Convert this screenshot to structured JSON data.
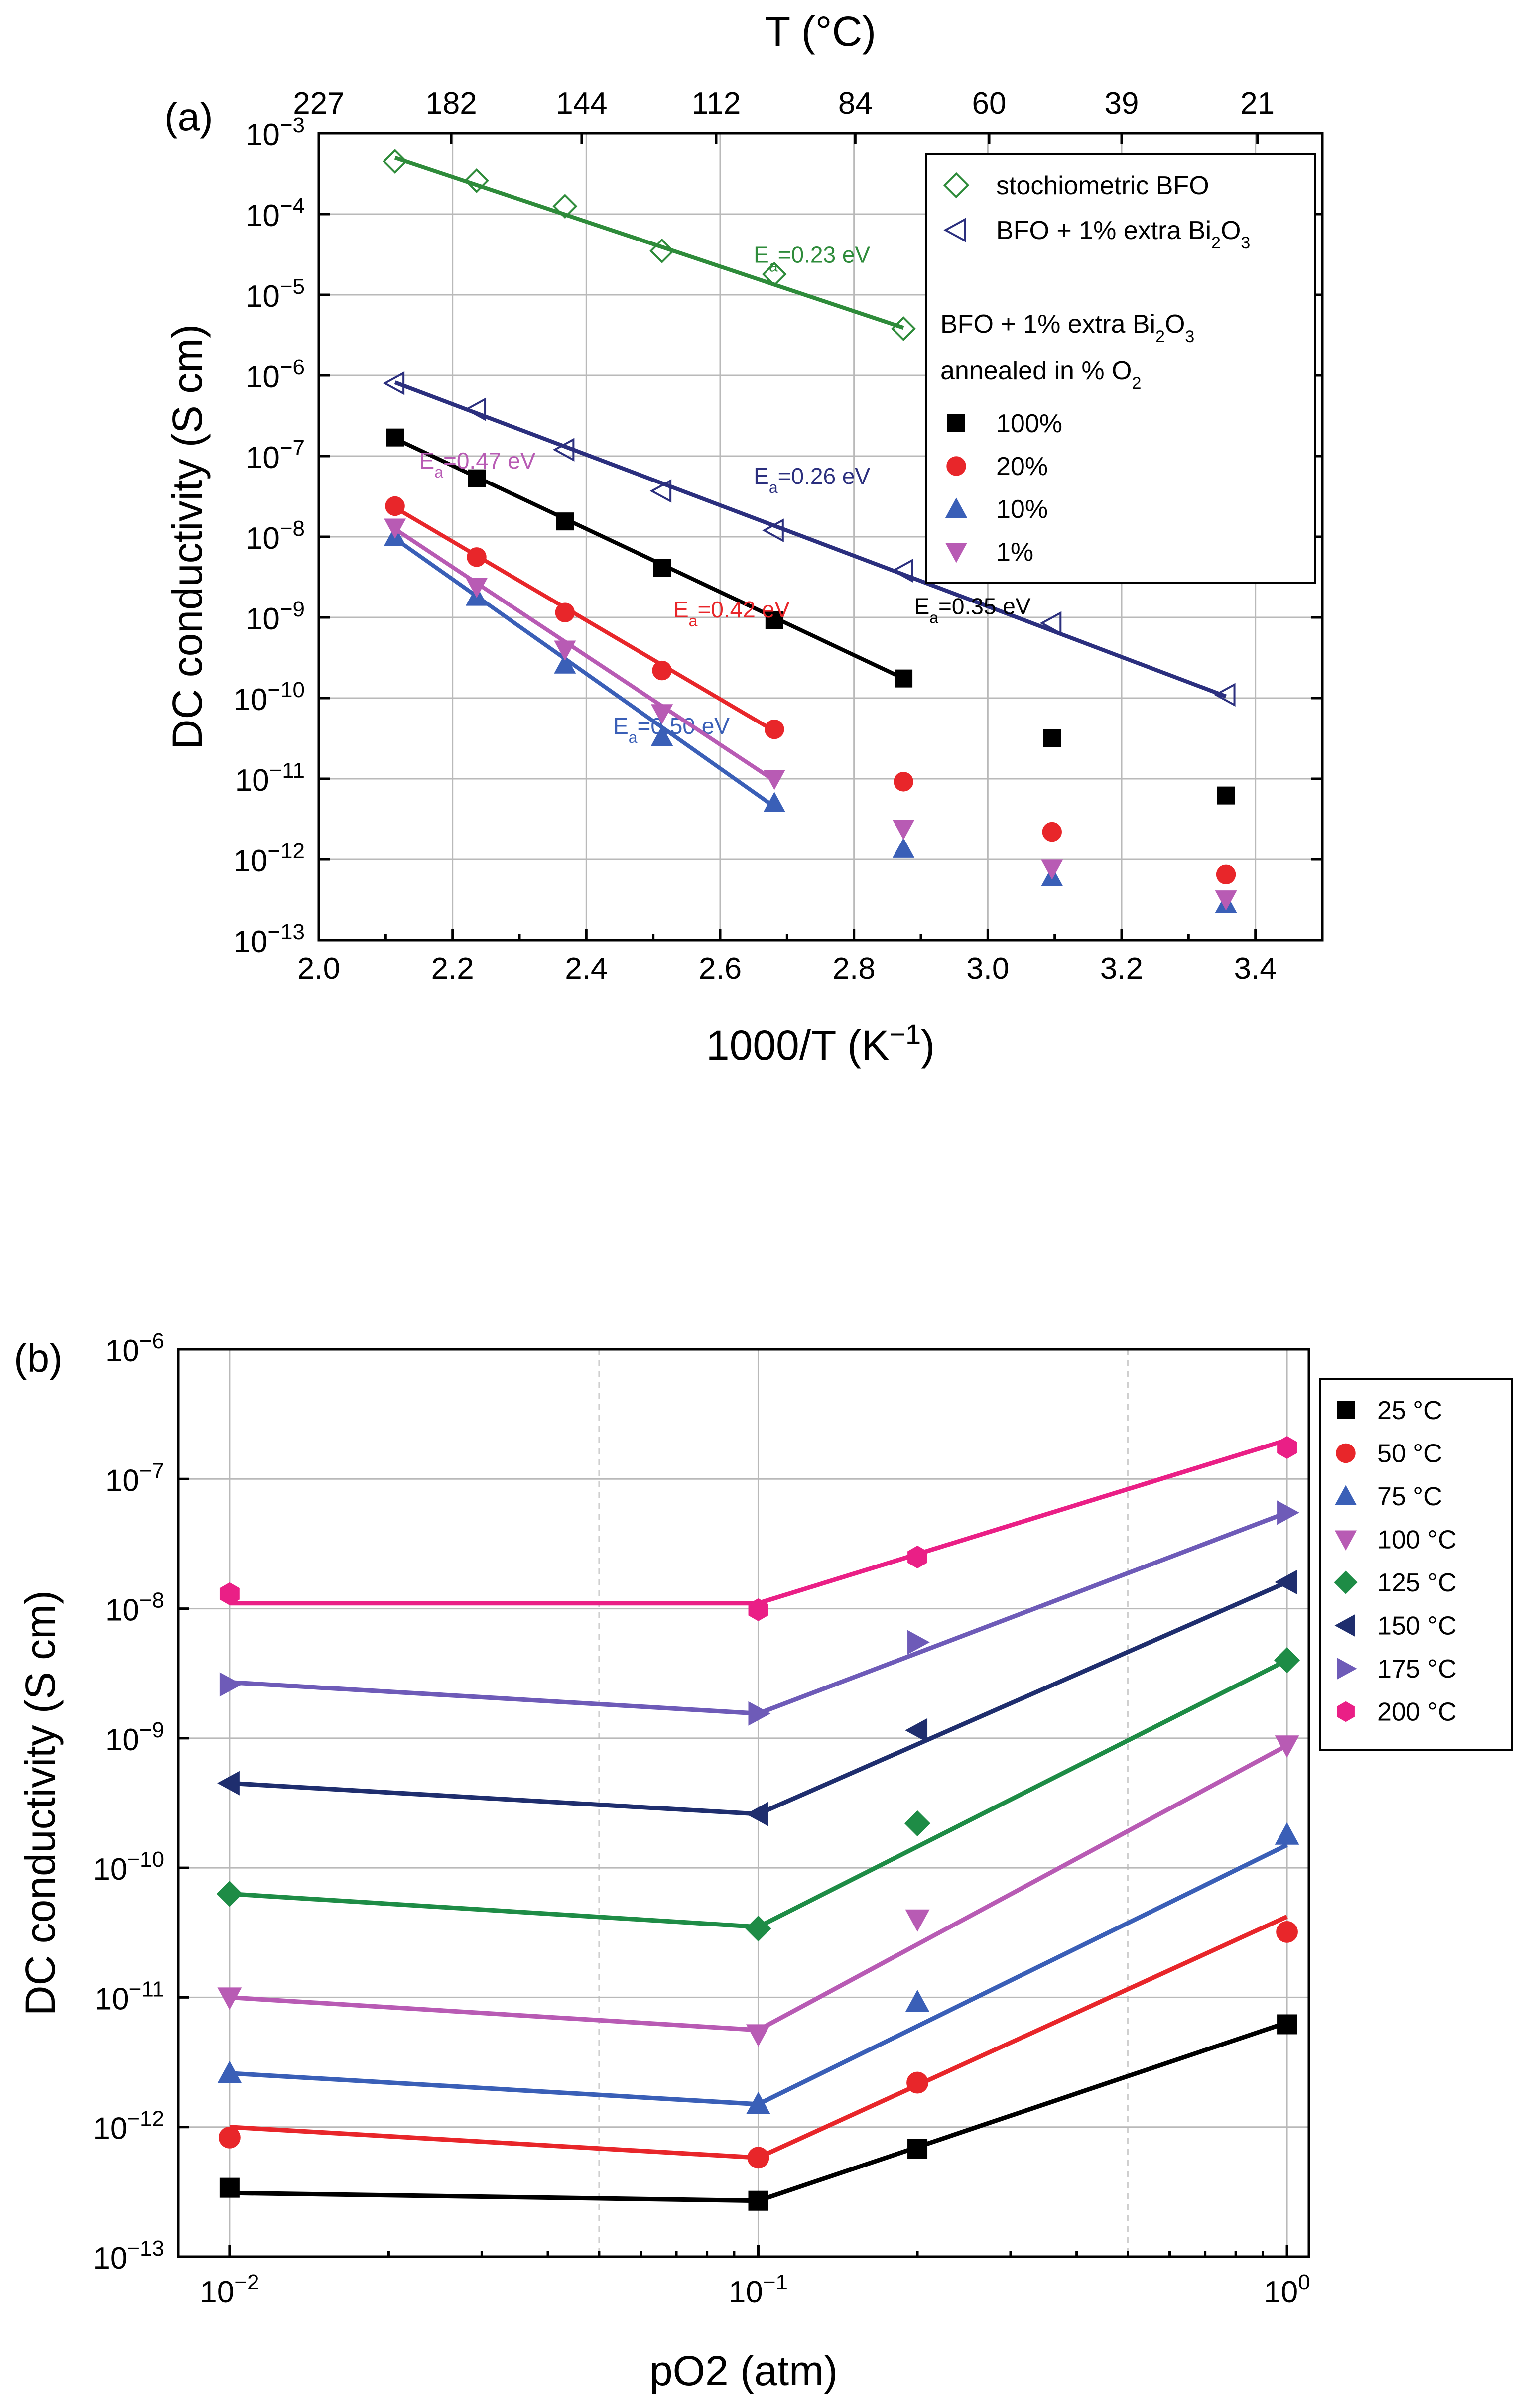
{
  "chart_data": [
    {
      "panel_label": "(a)",
      "type": "scatter",
      "xlabel": "1000/T (K⁻¹)",
      "ylabel": "DC conductivity (S cm)",
      "top_xlabel": "T (°C)",
      "xlim": [
        2.0,
        3.5
      ],
      "ylim": [
        1e-13,
        0.001
      ],
      "yscale": "log",
      "grid": true,
      "x_ticks": [
        "2.0",
        "2.2",
        "2.4",
        "2.6",
        "2.8",
        "3.0",
        "3.2",
        "3.4"
      ],
      "top_ticks": [
        {
          "label": "227",
          "x": 2.0
        },
        {
          "label": "182",
          "x": 2.198
        },
        {
          "label": "144",
          "x": 2.393
        },
        {
          "label": "112",
          "x": 2.594
        },
        {
          "label": "84",
          "x": 2.802
        },
        {
          "label": "60",
          "x": 3.002
        },
        {
          "label": "39",
          "x": 3.2
        },
        {
          "label": "21",
          "x": 3.403
        }
      ],
      "y_tick_exponents": [
        "-3",
        "-4",
        "-5",
        "-6",
        "-7",
        "-8",
        "-9",
        "-10",
        "-11",
        "-12",
        "-13"
      ],
      "legend_position": "top-right",
      "legend_entries": [
        {
          "label": "stochiometric BFO",
          "symbol": "diamond-open",
          "color": "#2e8b3a"
        },
        {
          "label": "BFO + 1% extra Bi₂O₃",
          "symbol": "triangle-left-open",
          "color": "#2b2f7e"
        }
      ],
      "legend_heading": [
        "BFO + 1% extra Bi₂O₃",
        "annealed in % O₂"
      ],
      "legend_heading_html": [
        "BFO + 1% extra Bi<tspan baseline-shift=\"sub\" font-size=\"34\">2</tspan>O<tspan baseline-shift=\"sub\" font-size=\"34\">3</tspan>",
        "annealed in % O<tspan baseline-shift=\"sub\" font-size=\"34\">2</tspan>"
      ],
      "series": [
        {
          "name": "stochiometric BFO",
          "color": "#2e8b3a",
          "symbol": "diamond-open",
          "x": [
            2.114,
            2.236,
            2.368,
            2.513,
            2.681,
            2.874
          ],
          "y": [
            0.00045,
            0.00026,
            0.000125,
            3.5e-05,
            1.8e-05,
            3.8e-06
          ],
          "fit": {
            "x": [
              2.114,
              2.874
            ],
            "y": [
              0.0005,
              3.9e-06
            ]
          },
          "annotation": {
            "text": "Ea=0.23 eV",
            "x": 2.65,
            "y": 2.5e-05
          }
        },
        {
          "name": "BFO + 1% extra Bi₂O₃",
          "color": "#2b2f7e",
          "symbol": "triangle-left-open",
          "x": [
            2.114,
            2.236,
            2.368,
            2.513,
            2.681,
            2.874,
            3.096,
            3.356
          ],
          "y": [
            8e-07,
            3.8e-07,
            1.2e-07,
            3.7e-08,
            1.2e-08,
            3.8e-09,
            8.5e-10,
            1.1e-10
          ],
          "fit": {
            "x": [
              2.114,
              3.356
            ],
            "y": [
              8.2e-07,
              1.05e-10
            ]
          },
          "annotation": {
            "text": "Ea=0.26 eV",
            "x": 2.65,
            "y": 4.5e-08
          }
        },
        {
          "name": "100%",
          "color": "#000000",
          "symbol": "square",
          "x": [
            2.114,
            2.236,
            2.368,
            2.513,
            2.681,
            2.874,
            3.096,
            3.356
          ],
          "y": [
            1.7e-07,
            5.3e-08,
            1.55e-08,
            4.1e-09,
            9.2e-10,
            1.75e-10,
            3.2e-11,
            6.2e-12
          ],
          "fit": {
            "x": [
              2.114,
              2.874
            ],
            "y": [
              1.65e-07,
              1.75e-10
            ]
          },
          "annotation": {
            "text": "Ea=0.35 eV",
            "x": 2.89,
            "y": 1.1e-09
          }
        },
        {
          "name": "20%",
          "color": "#e8262a",
          "symbol": "circle",
          "x": [
            2.114,
            2.236,
            2.368,
            2.513,
            2.681,
            2.874,
            3.096,
            3.356
          ],
          "y": [
            2.4e-08,
            5.6e-09,
            1.15e-09,
            2.2e-10,
            4.1e-11,
            9.2e-12,
            2.2e-12,
            6.5e-13
          ],
          "fit": {
            "x": [
              2.114,
              2.681
            ],
            "y": [
              2.3e-08,
              3.9e-11
            ]
          },
          "annotation": {
            "text": "Ea=0.42 eV",
            "x": 2.53,
            "y": 1e-09
          }
        },
        {
          "name": "10%",
          "color": "#3a5fb7",
          "symbol": "triangle-up",
          "x": [
            2.114,
            2.236,
            2.368,
            2.513,
            2.681,
            2.874,
            3.096,
            3.356
          ],
          "y": [
            1e-08,
            1.8e-09,
            2.6e-10,
            3.3e-11,
            5e-12,
            1.35e-12,
            6e-13,
            2.8e-13
          ],
          "fit": {
            "x": [
              2.114,
              2.681
            ],
            "y": [
              9.5e-09,
              4.5e-12
            ]
          },
          "annotation": {
            "text": "Ea=0.50 eV",
            "x": 2.44,
            "y": 3.6e-11
          }
        },
        {
          "name": "1%",
          "color": "#b85bb4",
          "symbol": "triangle-down",
          "x": [
            2.114,
            2.236,
            2.368,
            2.513,
            2.681,
            2.874,
            3.096,
            3.356
          ],
          "y": [
            1.3e-08,
            2.4e-09,
            4e-10,
            6.5e-11,
            1e-11,
            2.4e-12,
            7.7e-13,
            3.2e-13
          ],
          "fit": {
            "x": [
              2.114,
              2.681
            ],
            "y": [
              1.25e-08,
              9.5e-12
            ]
          },
          "annotation": {
            "text": "Ea=0.47 eV",
            "x": 2.15,
            "y": 7e-08
          }
        }
      ]
    },
    {
      "panel_label": "(b)",
      "type": "scatter",
      "xlabel": "pO2 (atm)",
      "ylabel": "DC conductivity (S cm)",
      "xscale": "log",
      "yscale": "log",
      "xlim": [
        0.008,
        1.1
      ],
      "ylim": [
        1e-13,
        1e-06
      ],
      "grid": true,
      "x_tick_exponents": [
        "-2",
        "-1",
        "0"
      ],
      "y_tick_exponents": [
        "-6",
        "-7",
        "-8",
        "-9",
        "-10",
        "-11",
        "-12",
        "-13"
      ],
      "legend_position": "right",
      "series": [
        {
          "name": "25 °C",
          "color": "#000000",
          "symbol": "square",
          "x": [
            0.01,
            0.1,
            0.2,
            1
          ],
          "y": [
            3.4e-13,
            2.7e-13,
            6.8e-13,
            6.2e-12
          ],
          "fit": {
            "x": [
              0.01,
              0.1,
              1
            ],
            "y": [
              3.1e-13,
              2.7e-13,
              6.4e-12
            ]
          }
        },
        {
          "name": "50 °C",
          "color": "#e8262a",
          "symbol": "circle",
          "x": [
            0.01,
            0.1,
            0.2,
            1
          ],
          "y": [
            8.3e-13,
            5.8e-13,
            2.2e-12,
            3.2e-11
          ],
          "fit": {
            "x": [
              0.01,
              0.1,
              1
            ],
            "y": [
              1e-12,
              5.8e-13,
              4.2e-11
            ]
          }
        },
        {
          "name": "75 °C",
          "color": "#3a5fb7",
          "symbol": "triangle-up",
          "x": [
            0.01,
            0.1,
            0.2,
            1
          ],
          "y": [
            2.6e-12,
            1.5e-12,
            9.2e-12,
            1.8e-10
          ],
          "fit": {
            "x": [
              0.01,
              0.1,
              1
            ],
            "y": [
              2.6e-12,
              1.5e-12,
              1.5e-10
            ]
          }
        },
        {
          "name": "100 °C",
          "color": "#b85bb4",
          "symbol": "triangle-down",
          "x": [
            0.01,
            0.1,
            0.2,
            1
          ],
          "y": [
            1e-11,
            5.2e-12,
            4e-11,
            8.8e-10
          ],
          "fit": {
            "x": [
              0.01,
              0.1,
              1
            ],
            "y": [
              1e-11,
              5.6e-12,
              8.8e-10
            ]
          }
        },
        {
          "name": "125 °C",
          "color": "#1e8c46",
          "symbol": "diamond",
          "x": [
            0.01,
            0.1,
            0.2,
            1
          ],
          "y": [
            6.3e-11,
            3.4e-11,
            2.2e-10,
            4e-09
          ],
          "fit": {
            "x": [
              0.01,
              0.1,
              1
            ],
            "y": [
              6.3e-11,
              3.5e-11,
              4e-09
            ]
          }
        },
        {
          "name": "150 °C",
          "color": "#1f2e6e",
          "symbol": "triangle-left",
          "x": [
            0.01,
            0.1,
            0.2,
            1
          ],
          "y": [
            4.5e-10,
            2.6e-10,
            1.15e-09,
            1.6e-08
          ],
          "fit": {
            "x": [
              0.01,
              0.1,
              1
            ],
            "y": [
              4.5e-10,
              2.6e-10,
              1.6e-08
            ]
          }
        },
        {
          "name": "175 °C",
          "color": "#6e5bb8",
          "symbol": "triangle-right",
          "x": [
            0.01,
            0.1,
            0.2,
            1
          ],
          "y": [
            2.6e-09,
            1.55e-09,
            5.5e-09,
            5.5e-08
          ],
          "fit": {
            "x": [
              0.01,
              0.1,
              1
            ],
            "y": [
              2.7e-09,
              1.55e-09,
              5.5e-08
            ]
          }
        },
        {
          "name": "200 °C",
          "color": "#ea1f86",
          "symbol": "hexagon",
          "x": [
            0.01,
            0.1,
            0.2,
            1
          ],
          "y": [
            1.3e-08,
            9.8e-09,
            2.5e-08,
            1.75e-07
          ],
          "fit": {
            "x": [
              0.01,
              0.1,
              1
            ],
            "y": [
              1.1e-08,
              1.1e-08,
              2e-07
            ]
          }
        }
      ]
    }
  ]
}
